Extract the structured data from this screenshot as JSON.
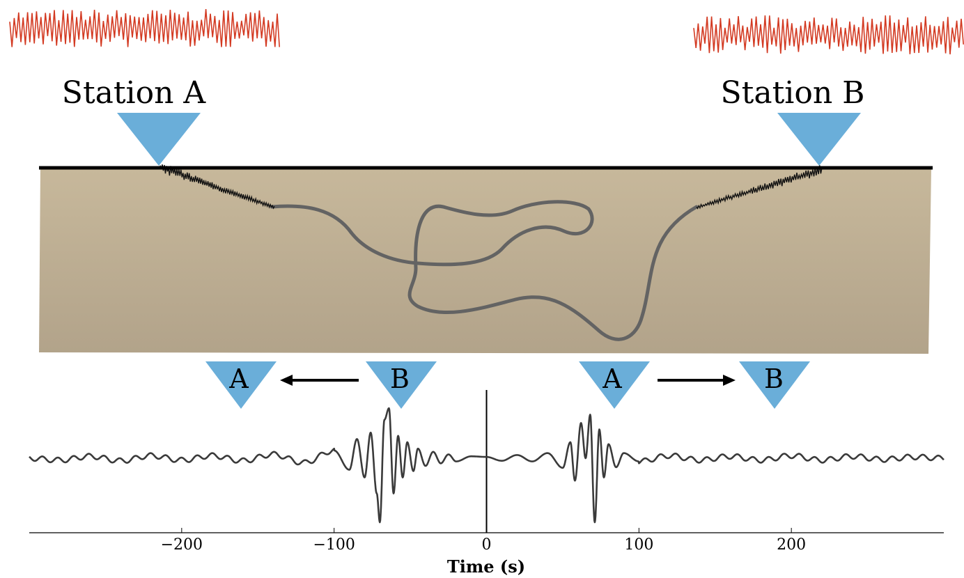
{
  "colors": {
    "station_fill": "#6aaed9",
    "noise_trace": "#d33a22",
    "ground_top": "#c7b89b",
    "ground_bottom": "#b2a38a",
    "surface_line": "#000000",
    "ray_path": "#636363",
    "scatter_trace": "#111111",
    "correlation_trace": "#3a3a3a",
    "arrow": "#000000"
  },
  "stations": {
    "a_label": "Station A",
    "b_label": "Station B"
  },
  "direction_markers": {
    "left_pair": {
      "from": "B",
      "to": "A"
    },
    "right_pair": {
      "from": "A",
      "to": "B"
    }
  },
  "icons": {
    "station": "inverted-triangle-icon",
    "arrow_left": "arrow-left-icon",
    "arrow_right": "arrow-right-icon"
  },
  "chart_data": {
    "type": "line",
    "title": "",
    "xlabel": "Time (s)",
    "ylabel": "",
    "xlim": [
      -300,
      300
    ],
    "ylim": [
      -1.05,
      1.05
    ],
    "xticks": [
      -200,
      -100,
      0,
      100,
      200
    ],
    "xtick_labels": [
      "−200",
      "−100",
      "0",
      "100",
      "200"
    ],
    "grid": false,
    "zero_marker": 0,
    "series": [
      {
        "x": [
          -300,
          -280,
          -260,
          -240,
          -220,
          -200,
          -180,
          -160,
          -140,
          -120,
          -100,
          -90,
          -85,
          -80,
          -76,
          -72,
          -70,
          -67,
          -64,
          -61,
          -58,
          -55,
          -52,
          -48,
          -45,
          -40,
          -35,
          -30,
          -25,
          -20,
          -10,
          0,
          10,
          20,
          30,
          40,
          50,
          55,
          58,
          62,
          65,
          68,
          71,
          74,
          77,
          80,
          85,
          90,
          100,
          120,
          140,
          160,
          180,
          200,
          220,
          240,
          260,
          280,
          300
        ],
        "y": [
          0.0,
          -0.03,
          0.03,
          -0.04,
          0.04,
          -0.03,
          0.04,
          -0.04,
          0.06,
          -0.07,
          0.12,
          -0.18,
          0.3,
          -0.3,
          0.4,
          -0.55,
          -1.0,
          0.6,
          0.78,
          -0.55,
          0.35,
          -0.3,
          0.25,
          -0.2,
          0.15,
          -0.12,
          0.1,
          -0.08,
          0.06,
          -0.05,
          0.03,
          0.02,
          -0.04,
          0.05,
          -0.05,
          0.08,
          -0.15,
          0.25,
          -0.35,
          0.55,
          0.0,
          0.68,
          -1.0,
          0.45,
          -0.3,
          0.22,
          -0.14,
          0.08,
          -0.05,
          0.04,
          -0.03,
          0.03,
          -0.03,
          0.04,
          -0.03,
          0.03,
          -0.02,
          0.02,
          0.0
        ]
      }
    ]
  }
}
